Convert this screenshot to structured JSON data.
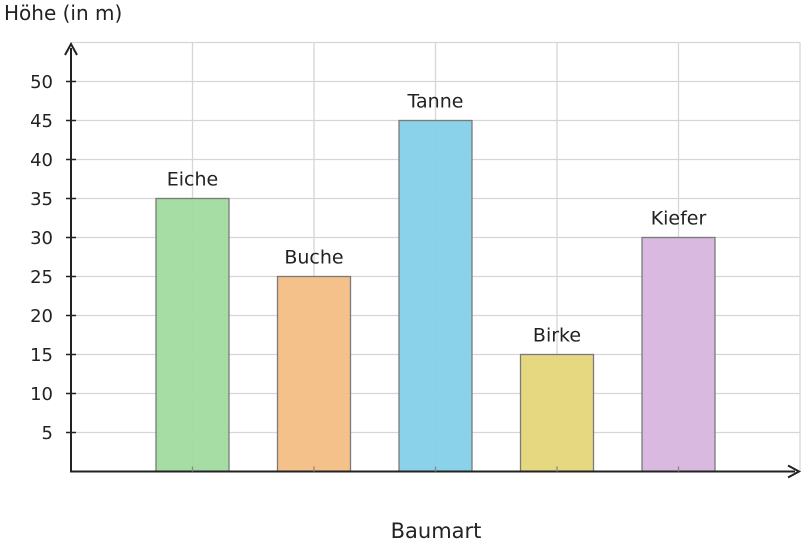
{
  "chart_data": {
    "type": "bar",
    "title": "",
    "ylabel": "Höhe (in m)",
    "xlabel": "Baumart",
    "categories": [
      "Eiche",
      "Buche",
      "Tanne",
      "Birke",
      "Kiefer"
    ],
    "values": [
      35,
      25,
      45,
      15,
      30
    ],
    "colors": [
      "#a0dba0",
      "#f4be85",
      "#84d0e8",
      "#e5d57a",
      "#d7b5de"
    ],
    "ylim": [
      0,
      55
    ],
    "yticks": [
      5,
      10,
      15,
      20,
      25,
      30,
      35,
      40,
      45,
      50
    ],
    "grid": true,
    "legend": "none"
  }
}
